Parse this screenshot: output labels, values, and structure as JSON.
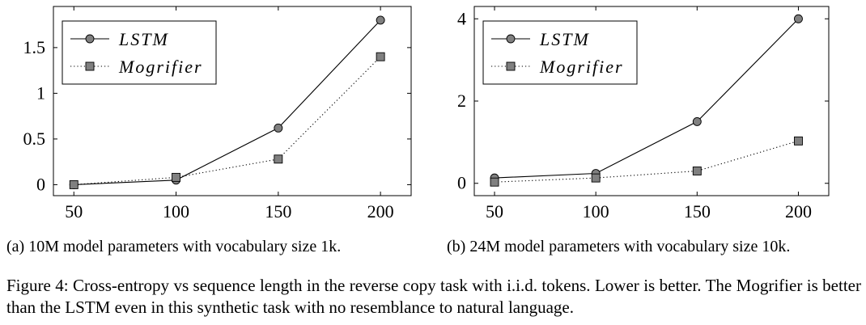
{
  "chart_data": [
    {
      "type": "line",
      "x": [
        50,
        100,
        150,
        200
      ],
      "xticks": [
        "50",
        "100",
        "150",
        "200"
      ],
      "yticks": [
        "0",
        "0.5",
        "1",
        "1.5"
      ],
      "ytick_values": [
        0,
        0.5,
        1,
        1.5
      ],
      "xlim": [
        40,
        215
      ],
      "ylim": [
        -0.12,
        1.95
      ],
      "series": [
        {
          "name": "LSTM",
          "values": [
            0.0,
            0.05,
            0.62,
            1.8
          ],
          "marker": "circle",
          "style": "solid"
        },
        {
          "name": "Mogrifier",
          "values": [
            0.0,
            0.08,
            0.28,
            1.4
          ],
          "marker": "square",
          "style": "dotted"
        }
      ],
      "legend_position": "top-left",
      "grid": false,
      "caption": "(a) 10M model parameters with vocabulary size 1k."
    },
    {
      "type": "line",
      "x": [
        50,
        100,
        150,
        200
      ],
      "xticks": [
        "50",
        "100",
        "150",
        "200"
      ],
      "yticks": [
        "0",
        "2",
        "4"
      ],
      "ytick_values": [
        0,
        2,
        4
      ],
      "xlim": [
        40,
        215
      ],
      "ylim": [
        -0.3,
        4.3
      ],
      "series": [
        {
          "name": "LSTM",
          "values": [
            0.13,
            0.24,
            1.5,
            4.0
          ],
          "marker": "circle",
          "style": "solid"
        },
        {
          "name": "Mogrifier",
          "values": [
            0.03,
            0.13,
            0.3,
            1.03
          ],
          "marker": "square",
          "style": "dotted"
        }
      ],
      "legend_position": "top-left",
      "grid": false,
      "caption": "(b) 24M model parameters with vocabulary size 10k."
    }
  ],
  "figure_caption": "Figure 4: Cross-entropy vs sequence length in the reverse copy task with i.i.d. tokens. Lower is better. The Mogrifier is better than the LSTM even in this synthetic task with no resemblance to natural language.",
  "colors": {
    "marker_fill": "#808080",
    "line": "#000000"
  }
}
